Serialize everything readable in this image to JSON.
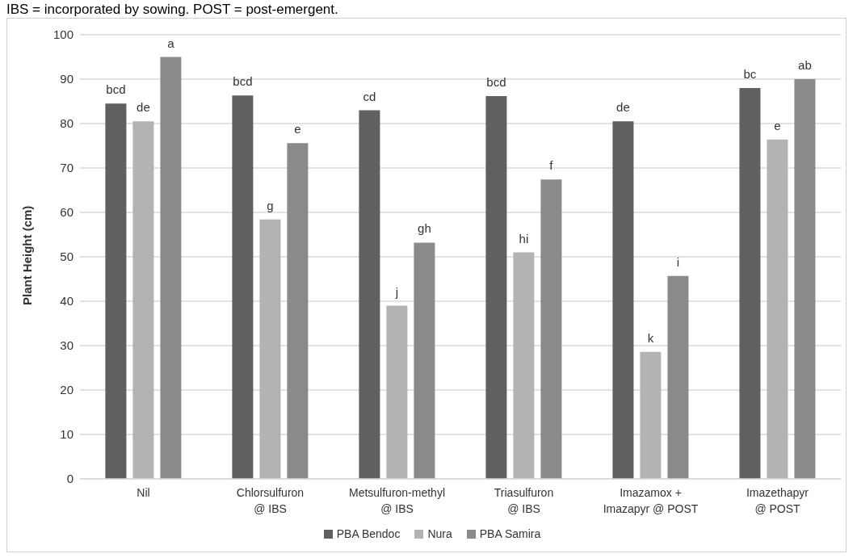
{
  "chart_data": {
    "type": "bar",
    "ylabel": "Plant Height (cm)",
    "annotations": [
      "IBS = incorporated by sowing. POST = post-emergent."
    ],
    "categories": [
      "Nil",
      "Chlorsulfuron\n@ IBS",
      "Metsulfuron-methyl\n@ IBS",
      "Triasulfuron\n@ IBS",
      "Imazamox +\nImazapyr @ POST",
      "Imazethapyr\n@ POST"
    ],
    "series": [
      {
        "name": "PBA Bendoc",
        "color": "#606060",
        "values": [
          84.5,
          86.3,
          83,
          86.2,
          80.5,
          88
        ],
        "value_labels": [
          "bcd",
          "bcd",
          "cd",
          "bcd",
          "de",
          "bc"
        ]
      },
      {
        "name": "Nura",
        "color": "#b3b3b3",
        "values": [
          80.5,
          58.4,
          39,
          51,
          28.6,
          76.4
        ],
        "value_labels": [
          "de",
          "g",
          "j",
          "hi",
          "k",
          "e"
        ]
      },
      {
        "name": "PBA Samira",
        "color": "#8a8a8a",
        "values": [
          95,
          75.6,
          53.2,
          67.4,
          45.7,
          90
        ],
        "value_labels": [
          "a",
          "e",
          "gh",
          "f",
          "i",
          "ab"
        ]
      }
    ],
    "ylim": [
      0,
      100
    ],
    "yticks": [
      0,
      10,
      20,
      30,
      40,
      50,
      60,
      70,
      80,
      90,
      100
    ],
    "grid": "y",
    "legend": "bottom"
  }
}
